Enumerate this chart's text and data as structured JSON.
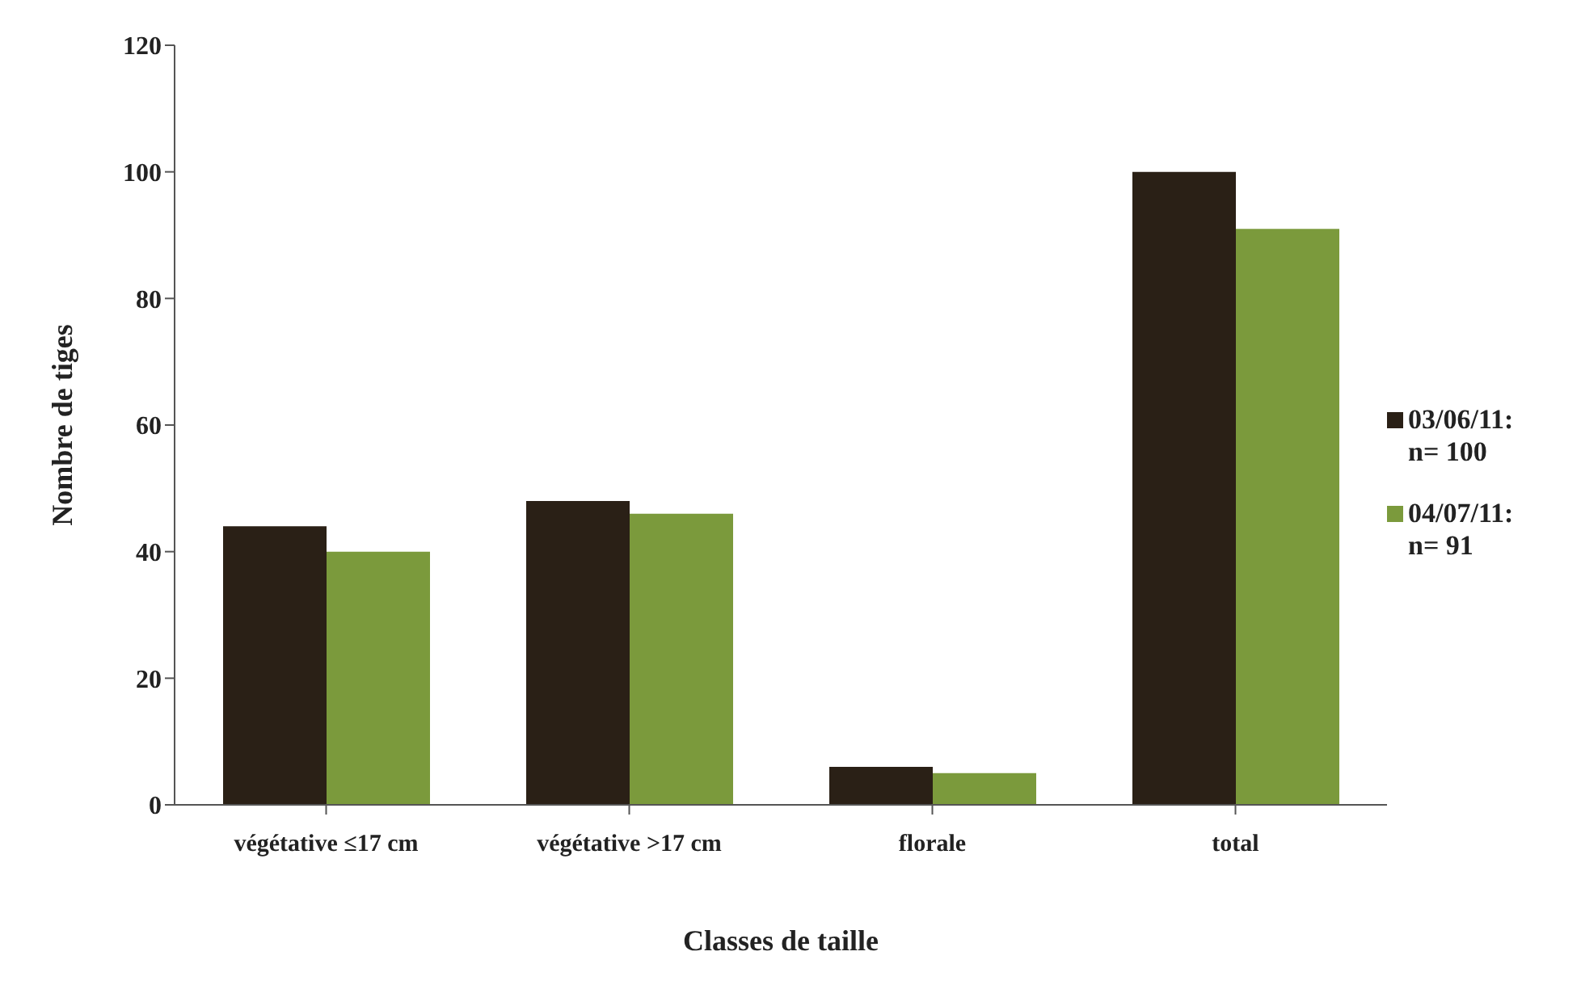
{
  "chart_data": {
    "type": "bar",
    "xlabel": "Classes de taille",
    "ylabel": "Nombre de tiges",
    "categories": [
      "végétative  ≤17 cm",
      "végétative  >17 cm",
      "florale",
      "total"
    ],
    "series": [
      {
        "name": "03/06/11: n= 100",
        "color": "#2a2016",
        "values": [
          44,
          48,
          6,
          100
        ]
      },
      {
        "name": "04/07/11: n= 91",
        "color": "#7b9a3c",
        "values": [
          40,
          46,
          5,
          91
        ]
      }
    ],
    "ylim": [
      0,
      120
    ],
    "yticks": [
      0,
      20,
      40,
      60,
      80,
      100,
      120
    ],
    "grid": false,
    "legend": "right"
  }
}
